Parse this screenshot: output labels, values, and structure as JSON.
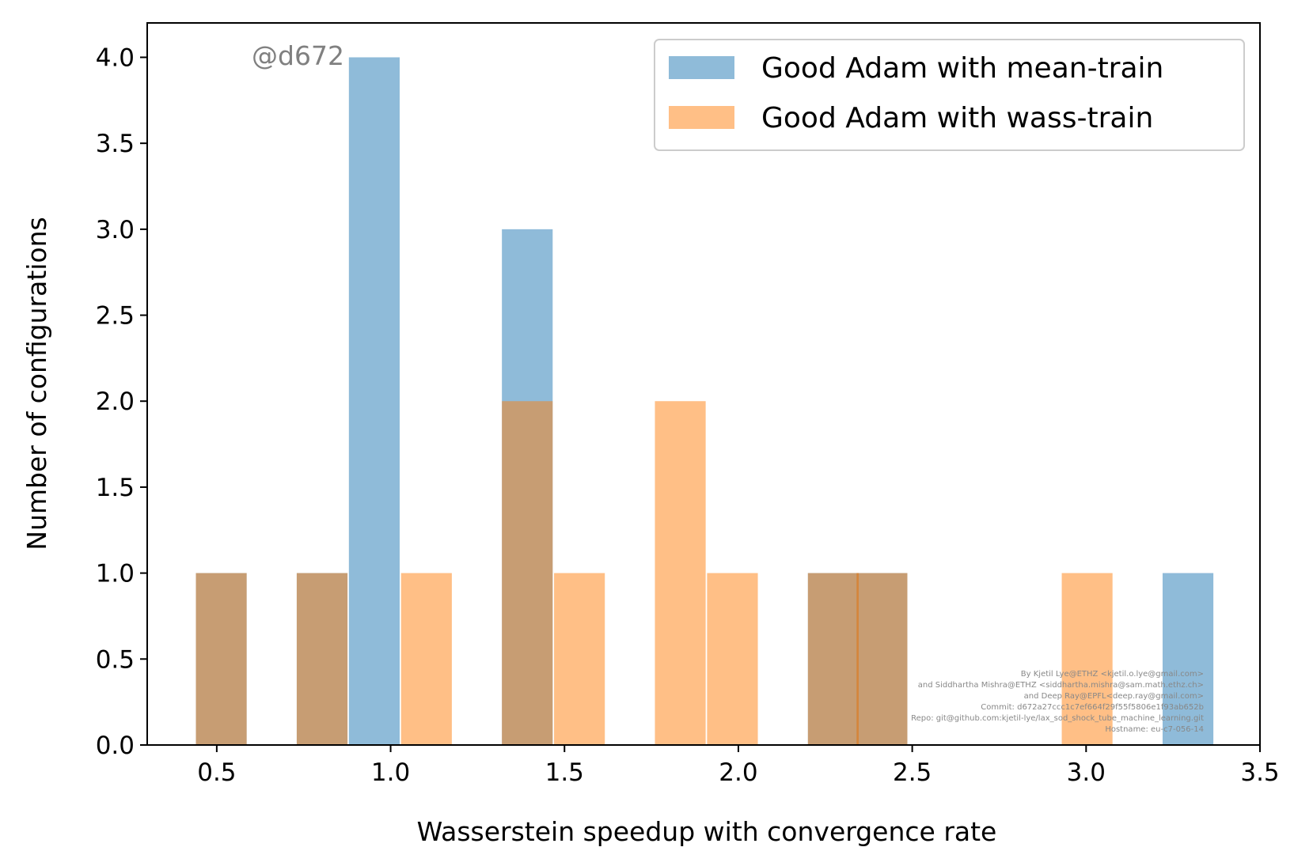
{
  "chart_data": {
    "type": "bar",
    "title": "",
    "xlabel": "Wasserstein speedup with convergence rate",
    "ylabel": "Number of configurations",
    "xlim": [
      0.3,
      3.5
    ],
    "ylim": [
      0,
      4.2
    ],
    "xticks": [
      "0.5",
      "1.0",
      "1.5",
      "2.0",
      "2.5",
      "3.0",
      "3.5"
    ],
    "yticks": [
      "0.0",
      "0.5",
      "1.0",
      "1.5",
      "2.0",
      "2.5",
      "3.0",
      "3.5",
      "4.0"
    ],
    "grid": false,
    "legend_position": "top-right",
    "bin_width": 0.146,
    "series": [
      {
        "name": "Good Adam with mean-train",
        "color": "#1f77b4",
        "alpha": 0.5,
        "bins": [
          {
            "x": 0.44,
            "count": 1
          },
          {
            "x": 0.73,
            "count": 1
          },
          {
            "x": 0.88,
            "count": 4
          },
          {
            "x": 1.32,
            "count": 3
          },
          {
            "x": 2.2,
            "count": 1
          },
          {
            "x": 2.34,
            "count": 1
          },
          {
            "x": 3.22,
            "count": 1
          }
        ]
      },
      {
        "name": "Good Adam with wass-train",
        "color": "#ff7f0e",
        "alpha": 0.5,
        "bins": [
          {
            "x": 0.44,
            "count": 1
          },
          {
            "x": 0.73,
            "count": 1
          },
          {
            "x": 1.03,
            "count": 1
          },
          {
            "x": 1.32,
            "count": 2
          },
          {
            "x": 1.47,
            "count": 1
          },
          {
            "x": 1.76,
            "count": 2
          },
          {
            "x": 1.91,
            "count": 1
          },
          {
            "x": 2.2,
            "count": 1
          },
          {
            "x": 2.34,
            "count": 1
          },
          {
            "x": 2.93,
            "count": 1
          }
        ]
      }
    ]
  },
  "watermark": "@d672",
  "credits": [
    "By Kjetil Lye@ETHZ <kjetil.o.lye@gmail.com>",
    "and Siddhartha Mishra@ETHZ <siddhartha.mishra@sam.math.ethz.ch>",
    "and Deep Ray@EPFL<deep.ray@gmail.com>",
    "Commit: d672a27ccc1c7ef664f29f55f5806e1f93ab652b",
    "Repo: git@github.com:kjetil-lye/lax_sod_shock_tube_machine_learning.git",
    "Hostname: eu-c7-056-14"
  ]
}
